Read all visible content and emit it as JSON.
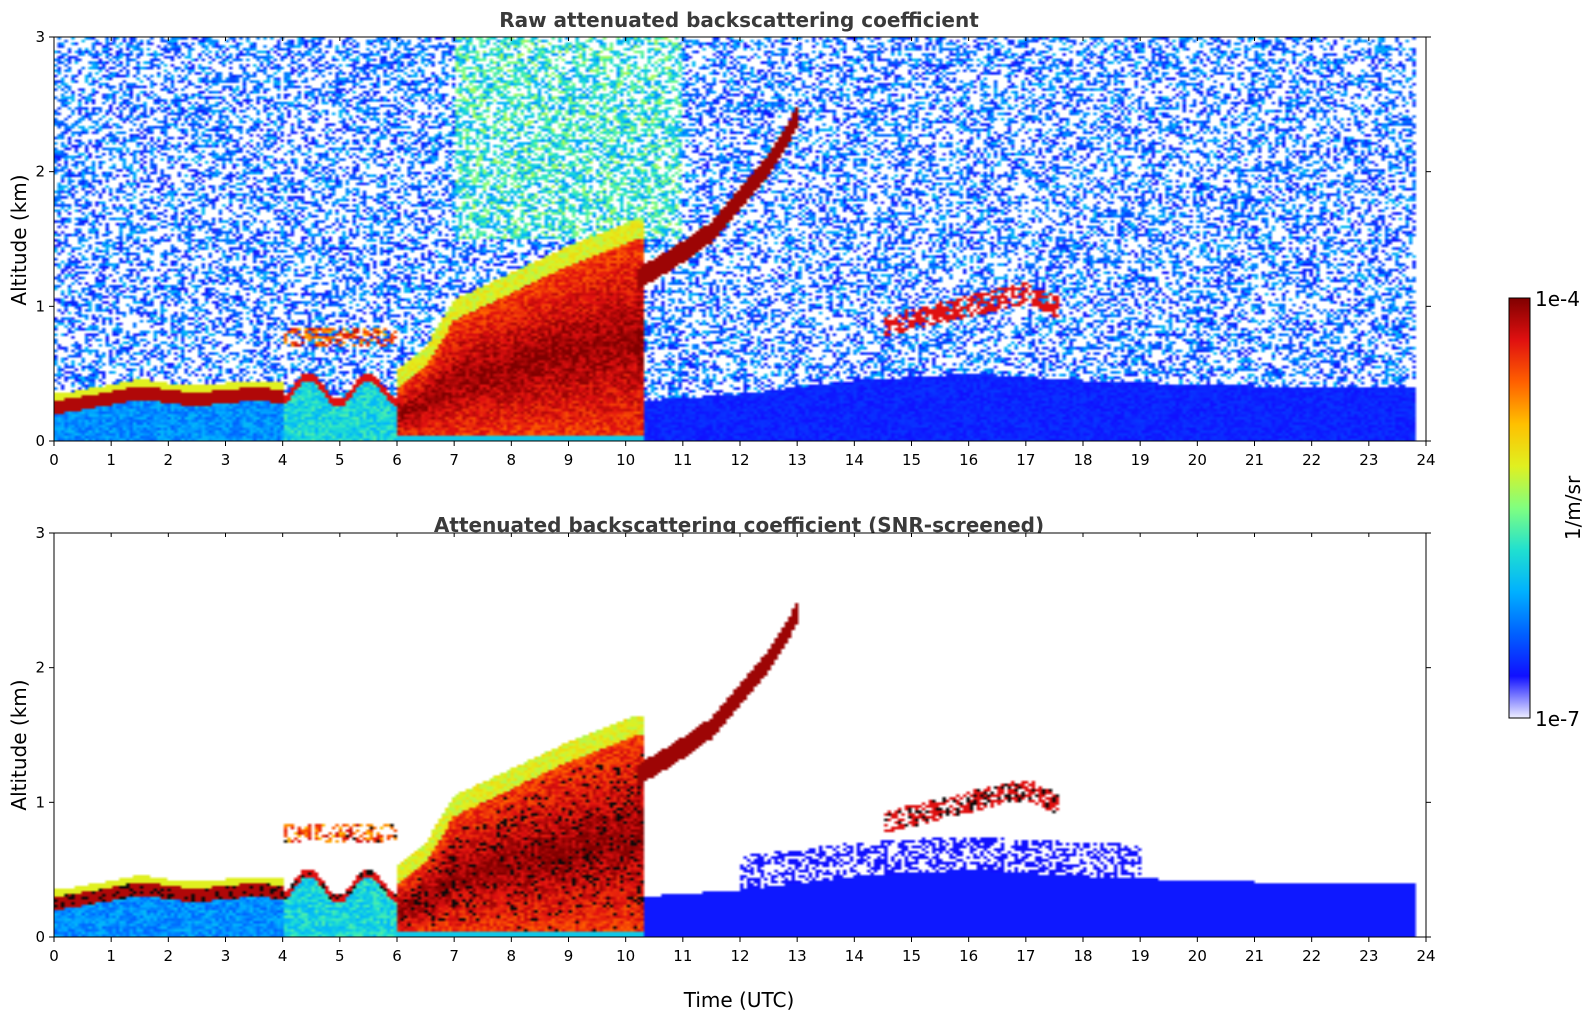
{
  "chart_data": [
    {
      "type": "heatmap",
      "title": "Raw attenuated backscattering coefficient",
      "xlabel": "",
      "ylabel": "Altitude (km)",
      "xlim": [
        0,
        24
      ],
      "ylim": [
        0,
        3
      ],
      "xticks": [
        0,
        1,
        2,
        3,
        4,
        5,
        6,
        7,
        8,
        9,
        10,
        11,
        12,
        13,
        14,
        15,
        16,
        17,
        18,
        19,
        20,
        21,
        22,
        23,
        24
      ],
      "yticks": [
        0,
        1,
        2,
        3
      ],
      "data_end_time": 23.8,
      "screened": false,
      "features": [
        {
          "name": "boundary layer top (morning)",
          "times": [
            0,
            0.5,
            1,
            1.5,
            2,
            2.5,
            3,
            3.5,
            3.8
          ],
          "altitudes": [
            0.25,
            0.28,
            0.32,
            0.36,
            0.33,
            0.31,
            0.33,
            0.35,
            0.34
          ]
        },
        {
          "name": "rising layer top",
          "times": [
            5.5,
            6,
            6.5,
            7,
            8,
            9,
            10.2
          ],
          "altitudes": [
            0.3,
            0.38,
            0.55,
            0.9,
            1.1,
            1.3,
            1.5
          ]
        },
        {
          "name": "elevated aerosol layer",
          "times": [
            10.2,
            10.8,
            11.5,
            12,
            12.5,
            13
          ],
          "altitudes": [
            1.2,
            1.35,
            1.55,
            1.8,
            2.05,
            2.4
          ]
        },
        {
          "name": "afternoon cloud patches",
          "times": [
            14.5,
            15,
            15.5,
            16,
            16.5,
            17,
            17.5
          ],
          "altitudes": [
            0.85,
            0.9,
            0.95,
            1.0,
            1.05,
            1.1,
            1.0
          ]
        },
        {
          "name": "afternoon boundary layer",
          "times": [
            10.3,
            12,
            14,
            16,
            18,
            20,
            22,
            23.8
          ],
          "altitudes": [
            0.3,
            0.35,
            0.45,
            0.5,
            0.45,
            0.42,
            0.4,
            0.4
          ]
        }
      ]
    },
    {
      "type": "heatmap",
      "title": "Attenuated backscattering coefficient (SNR-screened)",
      "xlabel": "Time (UTC)",
      "ylabel": "Altitude (km)",
      "xlim": [
        0,
        24
      ],
      "ylim": [
        0,
        3
      ],
      "xticks": [
        0,
        1,
        2,
        3,
        4,
        5,
        6,
        7,
        8,
        9,
        10,
        11,
        12,
        13,
        14,
        15,
        16,
        17,
        18,
        19,
        20,
        21,
        22,
        23,
        24
      ],
      "yticks": [
        0,
        1,
        2,
        3
      ],
      "data_end_time": 23.8,
      "screened": true,
      "features": [
        {
          "name": "boundary layer top (morning)",
          "times": [
            0,
            0.5,
            1,
            1.5,
            2,
            2.5,
            3,
            3.5,
            3.8
          ],
          "altitudes": [
            0.25,
            0.28,
            0.32,
            0.36,
            0.33,
            0.31,
            0.33,
            0.35,
            0.34
          ]
        },
        {
          "name": "rising layer top",
          "times": [
            5.5,
            6,
            6.5,
            7,
            8,
            9,
            10.2
          ],
          "altitudes": [
            0.3,
            0.38,
            0.55,
            0.9,
            1.1,
            1.3,
            1.5
          ]
        },
        {
          "name": "elevated aerosol layer",
          "times": [
            10.2,
            10.8,
            11.5,
            12,
            12.5,
            13
          ],
          "altitudes": [
            1.2,
            1.35,
            1.55,
            1.8,
            2.05,
            2.4
          ]
        },
        {
          "name": "afternoon cloud patches",
          "times": [
            14.5,
            15,
            15.5,
            16,
            16.5,
            17,
            17.5
          ],
          "altitudes": [
            0.85,
            0.9,
            0.95,
            1.0,
            1.05,
            1.1,
            1.0
          ]
        },
        {
          "name": "afternoon boundary layer",
          "times": [
            10.3,
            12,
            14,
            16,
            18,
            20,
            22,
            23.8
          ],
          "altitudes": [
            0.3,
            0.35,
            0.45,
            0.5,
            0.45,
            0.42,
            0.4,
            0.4
          ]
        }
      ]
    }
  ],
  "colorbar": {
    "label": "1/m/sr",
    "max_label": "1e-4",
    "min_label": "1e-7",
    "scale": "log",
    "range": [
      1e-07,
      0.0001
    ],
    "colors": [
      "#eeeeff",
      "#1010ff",
      "#0060ff",
      "#00b0ff",
      "#20e0d0",
      "#80ff80",
      "#e0f020",
      "#ffc000",
      "#ff6000",
      "#e01010",
      "#800000"
    ]
  }
}
